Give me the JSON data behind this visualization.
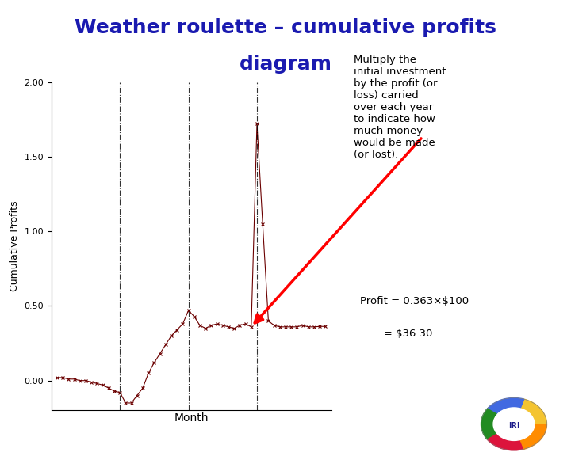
{
  "title_line1": "Weather roulette – cumulative profits",
  "title_line2": "diagram",
  "title_color": "#1a1ab0",
  "title_fontsize": 18,
  "xlabel": "Month",
  "ylabel": "Cumulative Profits",
  "ylim": [
    -0.2,
    2.0
  ],
  "yticks": [
    0.0,
    0.5,
    1.0,
    1.5,
    2.0
  ],
  "ytick_labels": [
    "0.00",
    "0.50",
    "1.00",
    "1.50",
    "2.00"
  ],
  "line_color": "#6b0000",
  "background_color": "#ffffff",
  "vline_positions": [
    12,
    24,
    36
  ],
  "annotation_text": "Multiply the\ninitial investment\nby the profit (or\nloss) carried\nover each year\nto indicate how\nmuch money\nwould be made\n(or lost).",
  "formula_line1": "Profit = 0.363×$100",
  "formula_line2": "       = $36.30",
  "x_data": [
    1,
    2,
    3,
    4,
    5,
    6,
    7,
    8,
    9,
    10,
    11,
    12,
    13,
    14,
    15,
    16,
    17,
    18,
    19,
    20,
    21,
    22,
    23,
    24,
    25,
    26,
    27,
    28,
    29,
    30,
    31,
    32,
    33,
    34,
    35,
    36,
    37,
    38,
    39,
    40,
    41,
    42,
    43,
    44,
    45,
    46,
    47,
    48
  ],
  "y_data": [
    0.02,
    0.02,
    0.01,
    0.01,
    0.0,
    0.0,
    -0.01,
    -0.02,
    -0.03,
    -0.05,
    -0.07,
    -0.08,
    -0.15,
    -0.15,
    -0.1,
    -0.05,
    0.05,
    0.12,
    0.18,
    0.24,
    0.3,
    0.34,
    0.38,
    0.47,
    0.43,
    0.37,
    0.35,
    0.37,
    0.38,
    0.37,
    0.36,
    0.35,
    0.37,
    0.38,
    0.36,
    1.72,
    1.05,
    0.4,
    0.37,
    0.36,
    0.36,
    0.36,
    0.36,
    0.37,
    0.36,
    0.36,
    0.363,
    0.363
  ]
}
